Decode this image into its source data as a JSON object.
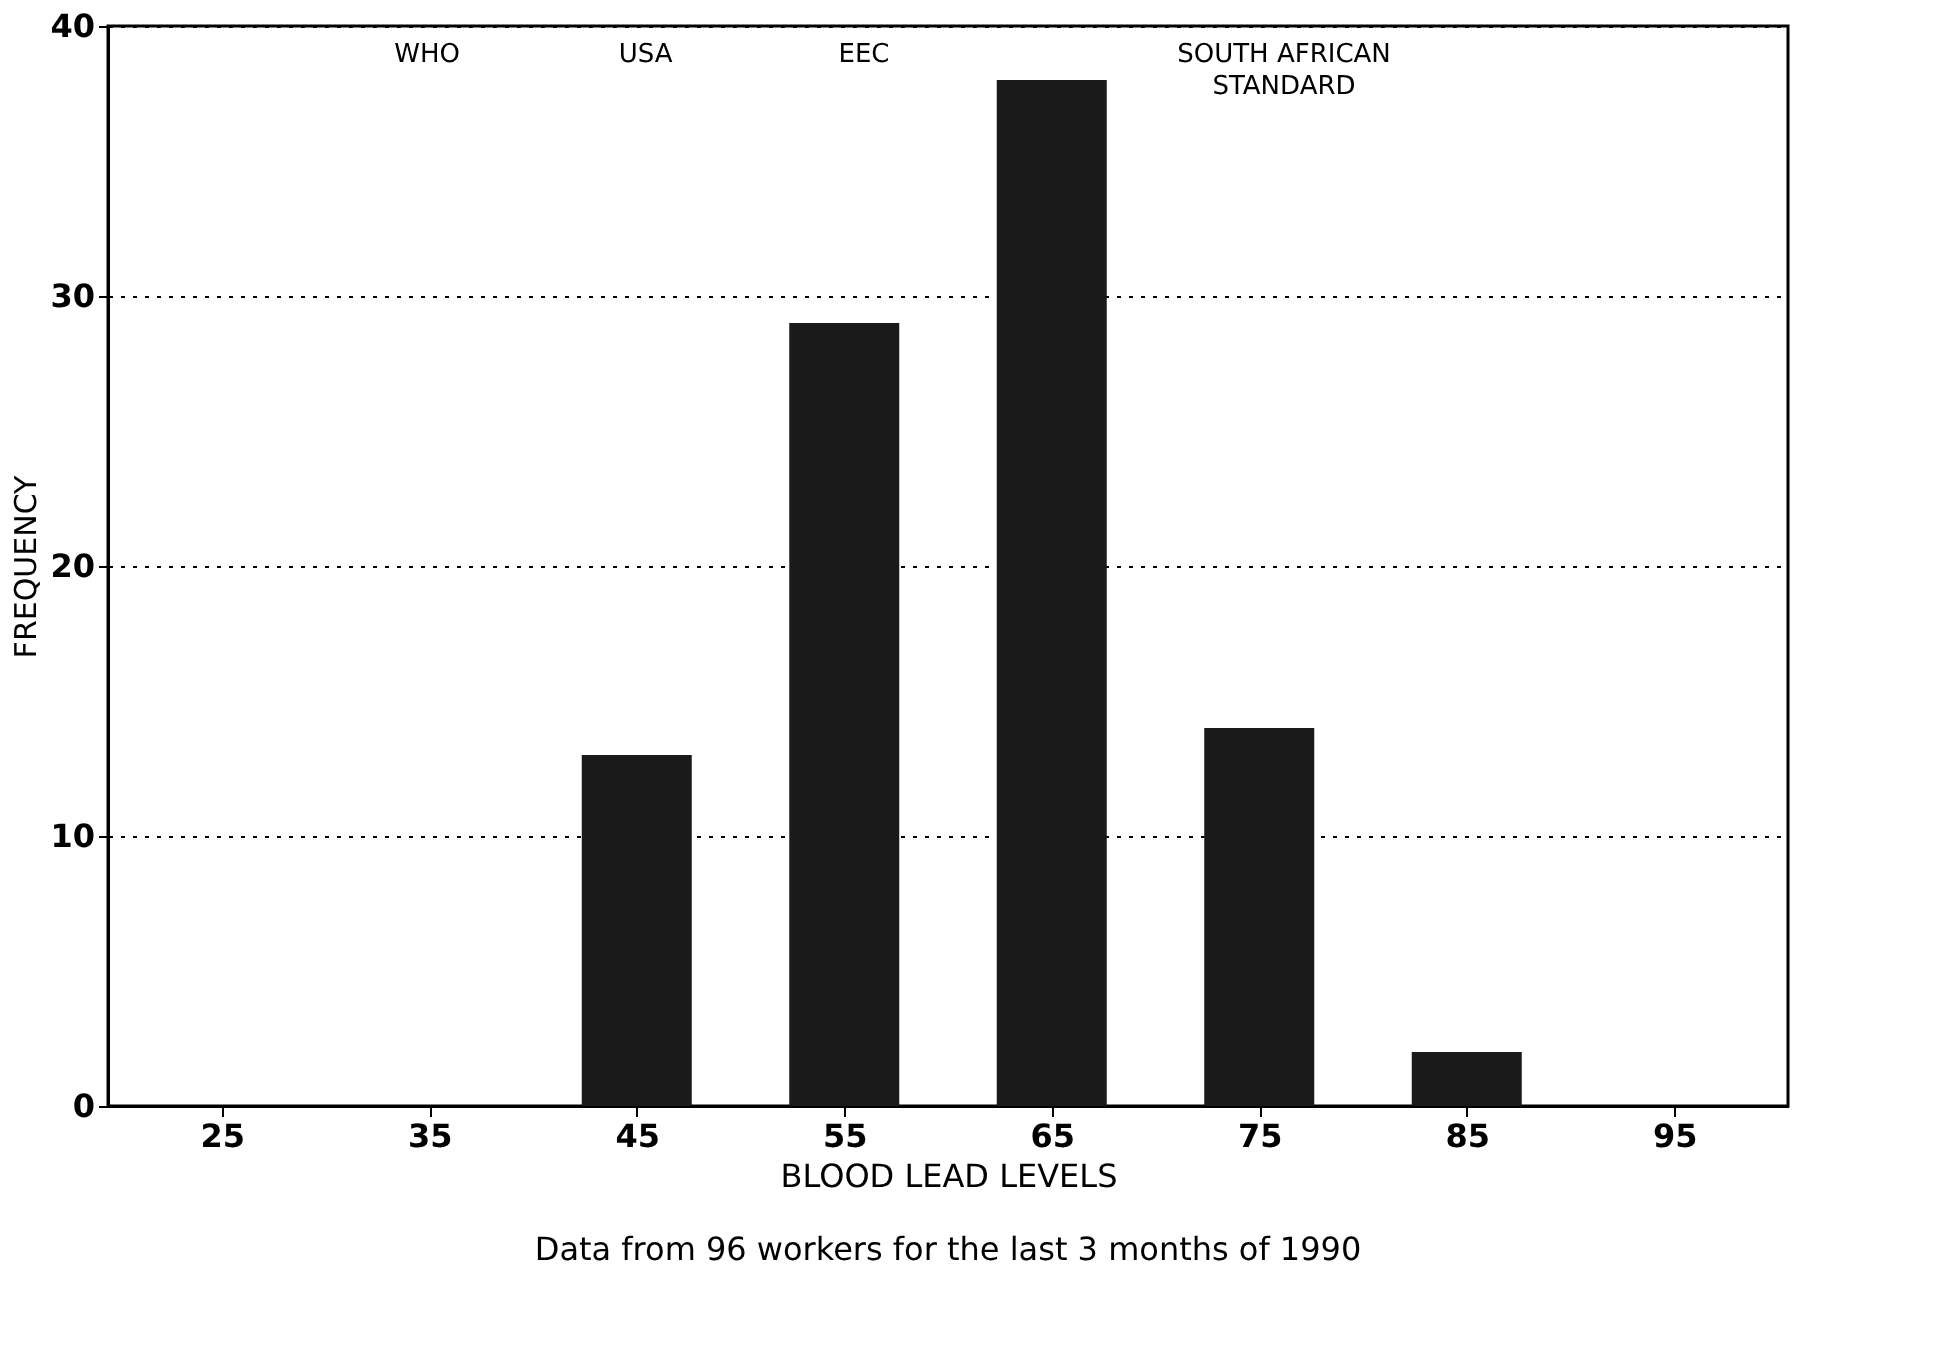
{
  "chart_data": {
    "type": "bar",
    "xlabel": "BLOOD LEAD LEVELS",
    "ylabel": "FREQUENCY",
    "categories": [
      "25",
      "35",
      "45",
      "55",
      "65",
      "75",
      "85",
      "95"
    ],
    "values": [
      0,
      0,
      13,
      29,
      38,
      14,
      2,
      0
    ],
    "color": "#1a1a1a",
    "ylim": [
      0,
      40
    ],
    "yticks": [
      0,
      10,
      20,
      30,
      40
    ],
    "grid": "y",
    "annotations": [
      "WHO",
      "USA",
      "EEC",
      "SOUTH AFRICAN\nSTANDARD",
      "Data from 96 workers for the last 3 months of 1990"
    ]
  }
}
